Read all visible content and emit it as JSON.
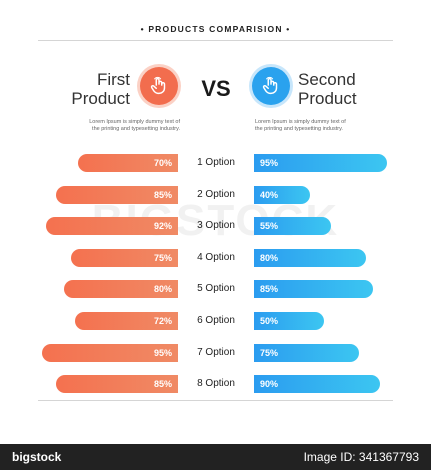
{
  "header": {
    "title": "• PRODUCTS COMPARISION •"
  },
  "left_product": {
    "line1": "First",
    "line2": "Product",
    "description_line1": "Lorem Ipsum is simply dummy text of",
    "description_line2": "the printing and typesetting industry.",
    "icon": "hand-pointer-icon",
    "color": "#f26d4e"
  },
  "right_product": {
    "line1": "Second",
    "line2": "Product",
    "description_line1": "Lorem Ipsum is simply dummy text of",
    "description_line2": "the printing and typesetting industry.",
    "icon": "hand-pointer-icon",
    "color": "#2aa2ee"
  },
  "vs_label": "VS",
  "watermark": "BIGSTOCK",
  "footer": {
    "brand": "bigstock",
    "image_id": "Image ID: 341367793"
  },
  "chart_data": {
    "type": "bar",
    "categories": [
      "1 Option",
      "2 Option",
      "3 Option",
      "4 Option",
      "5 Option",
      "6 Option",
      "7 Option",
      "8 Option"
    ],
    "series": [
      {
        "name": "First Product",
        "values": [
          70,
          85,
          92,
          75,
          80,
          72,
          95,
          85
        ],
        "color": "#f26d4e"
      },
      {
        "name": "Second Product",
        "values": [
          95,
          40,
          55,
          80,
          85,
          50,
          75,
          90
        ],
        "color": "#2aa2ee"
      }
    ],
    "value_suffix": "%",
    "ylim": [
      0,
      100
    ]
  }
}
